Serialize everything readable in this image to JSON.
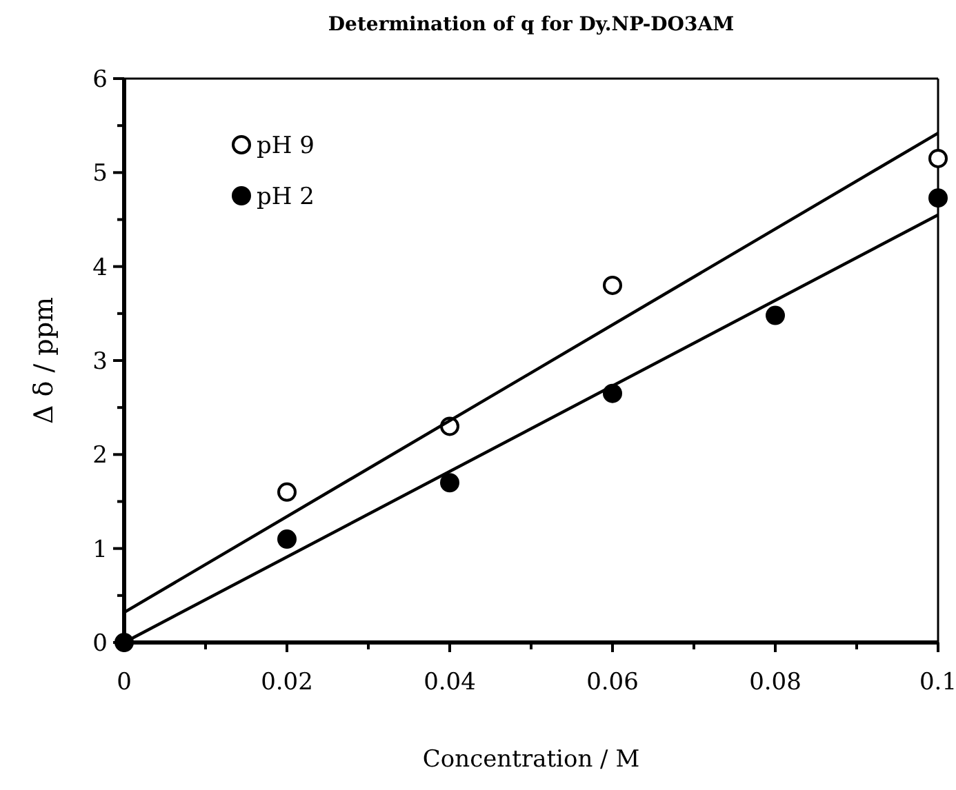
{
  "chart_data": {
    "type": "scatter",
    "title": "Determination of q for Dy.NP-DO3AM",
    "xlabel": "Concentration / M",
    "ylabel": "Δ δ / ppm",
    "xlim": [
      0,
      0.1
    ],
    "ylim": [
      0,
      6
    ],
    "xticks": [
      0,
      {
        "value": 0.01,
        "label": null
      },
      0.02,
      {
        "value": 0.03,
        "label": null
      },
      0.04,
      {
        "value": 0.05,
        "label": null
      },
      0.06,
      {
        "value": 0.07,
        "label": null
      },
      0.08,
      {
        "value": 0.09,
        "label": null
      },
      0.1
    ],
    "yticks": [
      0,
      {
        "value": 0.5,
        "label": null
      },
      1,
      {
        "value": 1.5,
        "label": null
      },
      2,
      {
        "value": 2.5,
        "label": null
      },
      3,
      {
        "value": 3.5,
        "label": null
      },
      4,
      {
        "value": 4.5,
        "label": null
      },
      5,
      {
        "value": 5.5,
        "label": null
      },
      6
    ],
    "grid": false,
    "legend": "top left",
    "marker": "circle",
    "series": [
      {
        "name": "pH 9",
        "color": "#ffffff",
        "x": [
          0.02,
          0.04,
          0.06,
          0.1
        ],
        "values": [
          1.6,
          2.3,
          3.8,
          5.15
        ]
      },
      {
        "name": "pH 2",
        "color": "#000000",
        "x": [
          0,
          0.02,
          0.04,
          0.06,
          0.08,
          0.1
        ],
        "values": [
          0,
          1.1,
          1.7,
          2.65,
          3.48,
          4.73
        ]
      },
      {
        "type": "line",
        "marker": "none",
        "color": "#000000",
        "x": [
          0,
          0.1
        ],
        "values": [
          0.32,
          5.42
        ]
      },
      {
        "type": "line",
        "marker": "none",
        "color": "#000000",
        "x": [
          0,
          0.1
        ],
        "values": [
          0,
          4.55
        ]
      }
    ]
  }
}
